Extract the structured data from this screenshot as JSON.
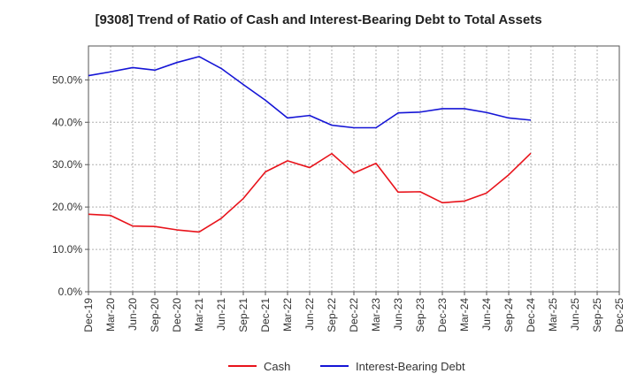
{
  "chart_data": {
    "type": "line",
    "title": "[9308]  Trend of Ratio of Cash and Interest-Bearing Debt to Total Assets",
    "xlabel": "",
    "ylabel": "",
    "x": [
      "Dec-19",
      "Mar-20",
      "Jun-20",
      "Sep-20",
      "Dec-20",
      "Mar-21",
      "Jun-21",
      "Sep-21",
      "Dec-21",
      "Mar-22",
      "Jun-22",
      "Sep-22",
      "Dec-22",
      "Mar-23",
      "Jun-23",
      "Sep-23",
      "Dec-23",
      "Mar-24",
      "Jun-24",
      "Sep-24",
      "Dec-24",
      "Mar-25"
    ],
    "x_tick_labels": [
      "Dec-19",
      "Mar-20",
      "Jun-20",
      "Sep-20",
      "Dec-20",
      "Mar-21",
      "Jun-21",
      "Sep-21",
      "Dec-21",
      "Mar-22",
      "Jun-22",
      "Sep-22",
      "Dec-22",
      "Mar-23",
      "Jun-23",
      "Sep-23",
      "Dec-23",
      "Mar-24",
      "Jun-24",
      "Sep-24",
      "Dec-24",
      "Mar-25",
      "Jun-25",
      "Sep-25",
      "Dec-25"
    ],
    "y_ticks": [
      "0.0%",
      "10.0%",
      "20.0%",
      "30.0%",
      "40.0%",
      "50.0%"
    ],
    "ylim": [
      0,
      58
    ],
    "grid": true,
    "legend_position": "bottom",
    "series": [
      {
        "name": "Cash",
        "color": "#e8131b",
        "values": [
          18.3,
          18.0,
          15.5,
          15.4,
          14.6,
          14.1,
          17.3,
          22.0,
          28.3,
          30.9,
          29.3,
          32.6,
          28.0,
          30.3,
          23.5,
          23.6,
          21.0,
          21.4,
          23.3,
          27.6,
          32.7,
          null
        ]
      },
      {
        "name": "Interest-Bearing Debt",
        "color": "#1515d6",
        "values": [
          51.0,
          51.9,
          52.9,
          52.3,
          54.1,
          55.5,
          52.7,
          48.9,
          45.2,
          41.0,
          41.6,
          39.3,
          38.7,
          38.7,
          42.2,
          42.4,
          43.2,
          43.2,
          42.3,
          41.0,
          40.5,
          null
        ]
      }
    ]
  }
}
